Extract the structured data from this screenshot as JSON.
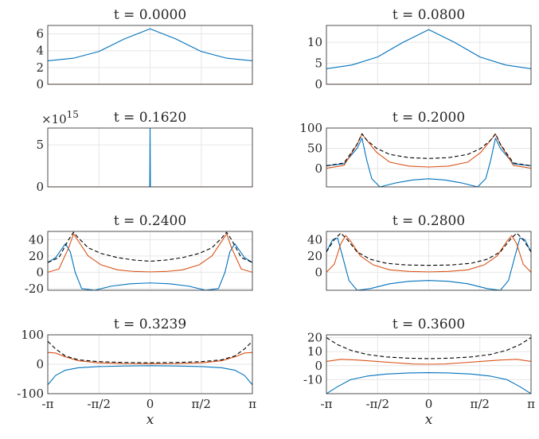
{
  "figure": {
    "x_ticks": [
      "-π",
      "-π/2",
      "0",
      "π/2",
      "π"
    ],
    "x_label": "x",
    "colors": {
      "blue": "#0072BD",
      "orange": "#D95319",
      "dashed": "#000000",
      "grid": "#e6e6e6",
      "axis": "#262626"
    }
  },
  "chart_data": [
    {
      "type": "line",
      "title": "t = 0.0000",
      "xlim": [
        -3.1416,
        3.1416
      ],
      "ylim": [
        0,
        7
      ],
      "yticks": [
        0,
        2,
        4,
        6
      ],
      "ytick_labels": [
        "0",
        "2",
        "4",
        "6"
      ],
      "grid": true,
      "series": [
        {
          "color": "blue",
          "x": [
            -3.1416,
            -2.3562,
            -1.5708,
            -0.7854,
            0,
            0.7854,
            1.5708,
            2.3562,
            3.1416
          ],
          "y": [
            2.8,
            3.1,
            3.9,
            5.4,
            6.6,
            5.4,
            3.9,
            3.1,
            2.8
          ]
        },
        {
          "color": "orange",
          "x": [
            -3.1416,
            3.1416
          ],
          "y": [
            0,
            0
          ]
        }
      ]
    },
    {
      "type": "line",
      "title": "t = 0.0800",
      "xlim": [
        -3.1416,
        3.1416
      ],
      "ylim": [
        0,
        14
      ],
      "yticks": [
        0,
        5,
        10
      ],
      "ytick_labels": [
        "0",
        "5",
        "10"
      ],
      "grid": true,
      "series": [
        {
          "color": "blue",
          "x": [
            -3.1416,
            -2.3562,
            -1.5708,
            -0.7854,
            0,
            0.7854,
            1.5708,
            2.3562,
            3.1416
          ],
          "y": [
            3.7,
            4.6,
            6.5,
            10.0,
            13.0,
            10.0,
            6.5,
            4.6,
            3.7
          ]
        },
        {
          "color": "orange",
          "x": [
            -3.1416,
            3.1416
          ],
          "y": [
            0,
            0
          ]
        }
      ]
    },
    {
      "type": "line",
      "title": "t = 0.1620",
      "xlim": [
        -3.1416,
        3.1416
      ],
      "ylim": [
        0,
        7
      ],
      "yticks": [
        0,
        5
      ],
      "ytick_labels": [
        "0",
        "5"
      ],
      "y_multiplier": "×10",
      "y_multiplier_exp": "15",
      "grid": true,
      "series": [
        {
          "color": "blue",
          "x": [
            -3.1416,
            -0.01,
            0,
            0.01,
            3.1416
          ],
          "y": [
            0,
            0,
            7,
            0,
            0
          ]
        },
        {
          "color": "orange",
          "x": [
            -3.1416,
            3.1416
          ],
          "y": [
            0,
            0
          ]
        }
      ]
    },
    {
      "type": "line",
      "title": "t = 0.2000",
      "xlim": [
        -3.1416,
        3.1416
      ],
      "ylim": [
        -45,
        100
      ],
      "yticks": [
        0,
        50,
        100
      ],
      "ytick_labels": [
        "0",
        "50",
        "100"
      ],
      "grid": true,
      "series": [
        {
          "color": "blue",
          "x": [
            -3.1416,
            -2.6,
            -2.2,
            -2.05,
            -1.9,
            -1.75,
            -1.5,
            -1.0,
            -0.5,
            0,
            0.5,
            1.0,
            1.5,
            1.75,
            1.9,
            2.05,
            2.2,
            2.6,
            3.1416
          ],
          "y": [
            7,
            12,
            50,
            75,
            20,
            -25,
            -45,
            -35,
            -28,
            -25,
            -28,
            -35,
            -45,
            -25,
            20,
            75,
            50,
            12,
            7
          ]
        },
        {
          "color": "orange",
          "x": [
            -3.1416,
            -2.6,
            -2.2,
            -2.05,
            -1.9,
            -1.6,
            -1.2,
            -0.6,
            0,
            0.6,
            1.2,
            1.6,
            1.9,
            2.05,
            2.2,
            2.6,
            3.1416
          ],
          "y": [
            1,
            8,
            60,
            85,
            70,
            40,
            16,
            6,
            4,
            6,
            16,
            40,
            70,
            85,
            60,
            8,
            1
          ]
        },
        {
          "color": "dashed",
          "x": [
            -3.1416,
            -2.6,
            -2.2,
            -2.05,
            -1.9,
            -1.6,
            -1.2,
            -0.6,
            0,
            0.6,
            1.2,
            1.6,
            1.9,
            2.05,
            2.2,
            2.6,
            3.1416
          ],
          "y": [
            7,
            14,
            60,
            86,
            70,
            50,
            35,
            27,
            25,
            27,
            35,
            50,
            70,
            86,
            60,
            14,
            7
          ]
        }
      ]
    },
    {
      "type": "line",
      "title": "t = 0.2400",
      "xlim": [
        -3.1416,
        3.1416
      ],
      "ylim": [
        -22,
        50
      ],
      "yticks": [
        -20,
        0,
        20,
        40
      ],
      "ytick_labels": [
        "-20",
        "0",
        "20",
        "40"
      ],
      "grid": true,
      "series": [
        {
          "color": "blue",
          "x": [
            -3.1416,
            -2.9,
            -2.6,
            -2.45,
            -2.3,
            -2.1,
            -1.7,
            -1.2,
            -0.6,
            0,
            0.6,
            1.2,
            1.7,
            2.1,
            2.3,
            2.45,
            2.6,
            2.9,
            3.1416
          ],
          "y": [
            12,
            18,
            35,
            25,
            0,
            -20,
            -22,
            -17,
            -14,
            -13,
            -14,
            -17,
            -22,
            -20,
            0,
            25,
            35,
            18,
            12
          ]
        },
        {
          "color": "orange",
          "x": [
            -3.1416,
            -2.8,
            -2.5,
            -2.35,
            -2.2,
            -1.9,
            -1.5,
            -1.0,
            -0.5,
            0,
            0.5,
            1.0,
            1.5,
            1.9,
            2.2,
            2.35,
            2.5,
            2.8,
            3.1416
          ],
          "y": [
            0,
            4,
            30,
            47,
            38,
            20,
            9,
            3,
            1,
            0.5,
            1,
            3,
            9,
            20,
            38,
            47,
            30,
            4,
            0
          ]
        },
        {
          "color": "dashed",
          "x": [
            -3.1416,
            -2.8,
            -2.5,
            -2.35,
            -2.2,
            -1.9,
            -1.5,
            -1.0,
            -0.5,
            0,
            0.5,
            1.0,
            1.5,
            1.9,
            2.2,
            2.35,
            2.5,
            2.8,
            3.1416
          ],
          "y": [
            12,
            18,
            40,
            49,
            42,
            30,
            23,
            18,
            15,
            13.5,
            15,
            18,
            23,
            30,
            42,
            49,
            40,
            18,
            12
          ]
        }
      ]
    },
    {
      "type": "line",
      "title": "t = 0.2800",
      "xlim": [
        -3.1416,
        3.1416
      ],
      "ylim": [
        -22,
        50
      ],
      "yticks": [
        0,
        20,
        40
      ],
      "ytick_labels": [
        "0",
        "20",
        "40"
      ],
      "grid": true,
      "series": [
        {
          "color": "blue",
          "x": [
            -3.1416,
            -2.95,
            -2.8,
            -2.65,
            -2.45,
            -2.2,
            -1.8,
            -1.2,
            -0.6,
            0,
            0.6,
            1.2,
            1.8,
            2.2,
            2.45,
            2.65,
            2.8,
            2.95,
            3.1416
          ],
          "y": [
            25,
            40,
            42,
            20,
            -10,
            -22,
            -20,
            -14,
            -11,
            -10,
            -11,
            -14,
            -20,
            -22,
            -10,
            20,
            42,
            40,
            25
          ]
        },
        {
          "color": "orange",
          "x": [
            -3.1416,
            -2.9,
            -2.7,
            -2.55,
            -2.4,
            -2.1,
            -1.7,
            -1.2,
            -0.6,
            0,
            0.6,
            1.2,
            1.7,
            2.1,
            2.4,
            2.55,
            2.7,
            2.9,
            3.1416
          ],
          "y": [
            0,
            10,
            35,
            45,
            38,
            20,
            9,
            3,
            1,
            0.5,
            1,
            3,
            9,
            20,
            38,
            45,
            35,
            10,
            0
          ]
        },
        {
          "color": "dashed",
          "x": [
            -3.1416,
            -2.9,
            -2.7,
            -2.5,
            -2.2,
            -1.8,
            -1.3,
            -0.7,
            0,
            0.7,
            1.3,
            1.8,
            2.2,
            2.5,
            2.7,
            2.9,
            3.1416
          ],
          "y": [
            25,
            40,
            48,
            40,
            25,
            16,
            11,
            9,
            8.5,
            9,
            11,
            16,
            25,
            40,
            48,
            40,
            25
          ]
        }
      ]
    },
    {
      "type": "line",
      "title": "t = 0.3239",
      "xlim": [
        -3.1416,
        3.1416
      ],
      "ylim": [
        -100,
        100
      ],
      "yticks": [
        -100,
        0,
        100
      ],
      "ytick_labels": [
        "-100",
        "0",
        "100"
      ],
      "grid": true,
      "series": [
        {
          "color": "blue",
          "x": [
            -3.1416,
            -2.9,
            -2.6,
            -2.2,
            -1.6,
            -0.8,
            0,
            0.8,
            1.6,
            2.2,
            2.6,
            2.9,
            3.1416
          ],
          "y": [
            -70,
            -38,
            -20,
            -12,
            -8,
            -6,
            -5,
            -6,
            -8,
            -12,
            -20,
            -38,
            -70
          ]
        },
        {
          "color": "orange",
          "x": [
            -3.1416,
            -2.9,
            -2.6,
            -2.2,
            -1.6,
            -0.8,
            0,
            0.8,
            1.6,
            2.2,
            2.6,
            2.9,
            3.1416
          ],
          "y": [
            40,
            38,
            25,
            12,
            5,
            2,
            1.5,
            2,
            5,
            12,
            25,
            38,
            40
          ]
        },
        {
          "color": "dashed",
          "x": [
            -3.1416,
            -2.9,
            -2.6,
            -2.2,
            -1.6,
            -0.8,
            0,
            0.8,
            1.6,
            2.2,
            2.6,
            2.9,
            3.1416
          ],
          "y": [
            78,
            52,
            28,
            15,
            9,
            6,
            5,
            6,
            9,
            15,
            28,
            52,
            78
          ]
        }
      ]
    },
    {
      "type": "line",
      "title": "t = 0.3600",
      "xlim": [
        -3.1416,
        3.1416
      ],
      "ylim": [
        -20,
        22
      ],
      "yticks": [
        -10,
        0,
        10,
        20
      ],
      "ytick_labels": [
        "-10",
        "0",
        "10",
        "20"
      ],
      "grid": true,
      "series": [
        {
          "color": "blue",
          "x": [
            -3.1416,
            -2.8,
            -2.4,
            -1.9,
            -1.3,
            -0.6,
            0,
            0.6,
            1.3,
            1.9,
            2.4,
            2.8,
            3.1416
          ],
          "y": [
            -20,
            -15,
            -10,
            -7.5,
            -6,
            -5.2,
            -5,
            -5.2,
            -6,
            -7.5,
            -10,
            -15,
            -20
          ]
        },
        {
          "color": "orange",
          "x": [
            -3.1416,
            -2.7,
            -2.2,
            -1.6,
            -1.0,
            -0.5,
            0,
            0.5,
            1.0,
            1.6,
            2.2,
            2.7,
            3.1416
          ],
          "y": [
            3,
            4.5,
            4,
            3,
            2,
            1.2,
            1,
            1.2,
            2,
            3,
            4,
            4.5,
            3
          ]
        },
        {
          "color": "dashed",
          "x": [
            -3.1416,
            -2.8,
            -2.4,
            -1.9,
            -1.3,
            -0.6,
            0,
            0.6,
            1.3,
            1.9,
            2.4,
            2.8,
            3.1416
          ],
          "y": [
            20,
            15,
            11,
            8,
            6.2,
            5.3,
            5,
            5.3,
            6.2,
            8,
            11,
            15,
            20
          ]
        }
      ]
    }
  ]
}
